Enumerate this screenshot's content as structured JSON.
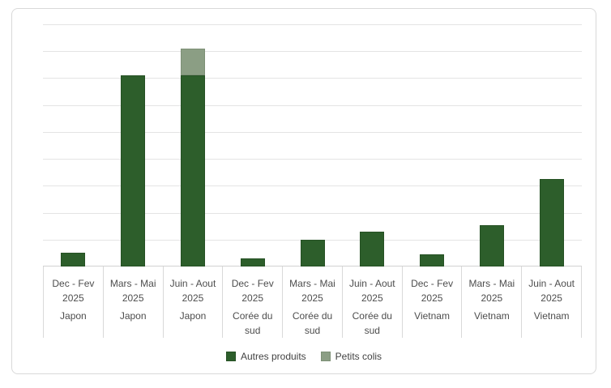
{
  "chart_data": {
    "type": "bar",
    "stacked": true,
    "title": "",
    "xlabel": "",
    "ylabel": "",
    "ylim": [
      0,
      18
    ],
    "ytick_step": 2,
    "yticks": [
      0,
      2,
      4,
      6,
      8,
      10,
      12,
      14,
      16,
      18
    ],
    "grid": true,
    "legend_position": "bottom",
    "categories": [
      {
        "period": "Dec - Fev 2025",
        "group": "Japon",
        "period_lines": [
          "Dec - Fev",
          "2025"
        ],
        "group_lines": [
          "Japon"
        ]
      },
      {
        "period": "Mars - Mai 2025",
        "group": "Japon",
        "period_lines": [
          "Mars - Mai",
          "2025"
        ],
        "group_lines": [
          "Japon"
        ]
      },
      {
        "period": "Juin - Aout 2025",
        "group": "Japon",
        "period_lines": [
          "Juin - Aout",
          "2025"
        ],
        "group_lines": [
          "Japon"
        ]
      },
      {
        "period": "Dec - Fev 2025",
        "group": "Corée du sud",
        "period_lines": [
          "Dec - Fev",
          "2025"
        ],
        "group_lines": [
          "Corée du",
          "sud"
        ]
      },
      {
        "period": "Mars - Mai 2025",
        "group": "Corée du sud",
        "period_lines": [
          "Mars - Mai",
          "2025"
        ],
        "group_lines": [
          "Corée du",
          "sud"
        ]
      },
      {
        "period": "Juin - Aout 2025",
        "group": "Corée du sud",
        "period_lines": [
          "Juin - Aout",
          "2025"
        ],
        "group_lines": [
          "Corée du",
          "sud"
        ]
      },
      {
        "period": "Dec - Fev 2025",
        "group": "Vietnam",
        "period_lines": [
          "Dec - Fev",
          "2025"
        ],
        "group_lines": [
          "Vietnam"
        ]
      },
      {
        "period": "Mars - Mai 2025",
        "group": "Vietnam",
        "period_lines": [
          "Mars - Mai",
          "2025"
        ],
        "group_lines": [
          "Vietnam"
        ]
      },
      {
        "period": "Juin - Aout 2025",
        "group": "Vietnam",
        "period_lines": [
          "Juin - Aout",
          "2025"
        ],
        "group_lines": [
          "Vietnam"
        ]
      }
    ],
    "series": [
      {
        "name": "Autres produits",
        "color": "#2d5e2b",
        "border_color": "#265124",
        "values": [
          1.0,
          14.2,
          14.2,
          0.6,
          2.0,
          2.6,
          0.9,
          3.1,
          6.5
        ]
      },
      {
        "name": "Petits colis",
        "color": "#8b9e84",
        "border_color": "#7d9076",
        "values": [
          0,
          0,
          2.0,
          0,
          0,
          0,
          0,
          0,
          0
        ]
      }
    ]
  },
  "style_colors": {
    "gridline": "#e4e4e4",
    "axis_line": "#d2d2d2",
    "card_border": "#d9d9d9",
    "tick_text": "#4d4d4d",
    "legend_text": "#424242"
  }
}
